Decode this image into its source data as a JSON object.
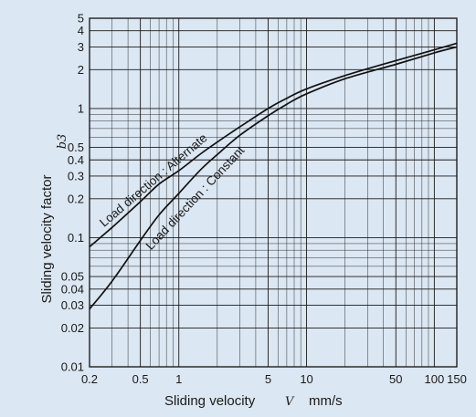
{
  "chart_data": {
    "type": "line",
    "x_scale": "log",
    "y_scale": "log",
    "xlim": [
      0.2,
      150
    ],
    "ylim": [
      0.01,
      5
    ],
    "xlabel": "Sliding velocity",
    "xlabel_symbol": "V",
    "xlabel_unit": "mm/s",
    "ylabel": "Sliding velocity factor",
    "ylabel_symbol": "b3",
    "x_tick_labels": [
      "0.2",
      "0.5",
      "1",
      "5",
      "10",
      "50",
      "100",
      "150"
    ],
    "x_tick_values": [
      0.2,
      0.5,
      1,
      5,
      10,
      50,
      100,
      150
    ],
    "y_tick_labels": [
      "0.01",
      "0.02",
      "0.03",
      "0.04",
      "0.05",
      "0.1",
      "0.2",
      "0.3",
      "0.4",
      "0.5",
      "1",
      "2",
      "3",
      "4",
      "5"
    ],
    "y_tick_values": [
      0.01,
      0.02,
      0.03,
      0.04,
      0.05,
      0.1,
      0.2,
      0.3,
      0.4,
      0.5,
      1,
      2,
      3,
      4,
      5
    ],
    "grid": true,
    "series": [
      {
        "name": "Load direction : Alternate",
        "x": [
          0.2,
          0.3,
          0.5,
          0.7,
          1,
          1.5,
          2,
          3,
          5,
          7,
          10,
          20,
          50,
          100,
          150
        ],
        "y": [
          0.085,
          0.12,
          0.19,
          0.26,
          0.33,
          0.45,
          0.55,
          0.72,
          1.0,
          1.2,
          1.42,
          1.8,
          2.35,
          2.85,
          3.2
        ]
      },
      {
        "name": "Load direction : Constant",
        "x": [
          0.2,
          0.3,
          0.5,
          0.7,
          1,
          1.5,
          2,
          3,
          5,
          7,
          10,
          20,
          50,
          100,
          150
        ],
        "y": [
          0.028,
          0.046,
          0.095,
          0.15,
          0.22,
          0.34,
          0.44,
          0.62,
          0.88,
          1.08,
          1.3,
          1.7,
          2.2,
          2.7,
          3.0
        ]
      }
    ]
  }
}
